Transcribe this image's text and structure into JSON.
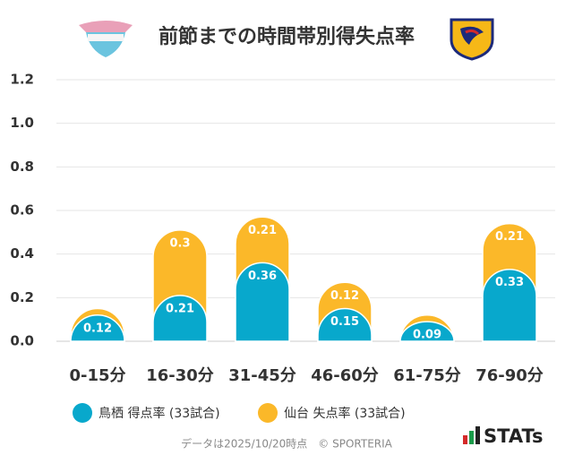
{
  "chart_data": {
    "type": "stacked_bar",
    "title": "前節までの時間帯別得失点率",
    "categories": [
      "0-15分",
      "16-30分",
      "31-45分",
      "46-60分",
      "61-75分",
      "76-90分"
    ],
    "series": [
      {
        "name": "鳥栖 得点率 (33試合)",
        "color": "#08a8cc",
        "values": [
          0.12,
          0.21,
          0.36,
          0.15,
          0.09,
          0.33
        ]
      },
      {
        "name": "仙台 失点率 (33試合)",
        "color": "#fbb829",
        "values": [
          0.03,
          0.3,
          0.21,
          0.12,
          0.03,
          0.21
        ]
      }
    ],
    "ylim": [
      0,
      1.2
    ],
    "yticks": [
      {
        "value": 0,
        "label": "0.0"
      },
      0.2,
      0.4,
      0.6,
      0.8,
      {
        "value": 1,
        "label": "1.0"
      },
      1.2
    ],
    "grid": true,
    "footer": "データは2025/10/20時点　© SPORTERIA",
    "brand": "STATs"
  }
}
